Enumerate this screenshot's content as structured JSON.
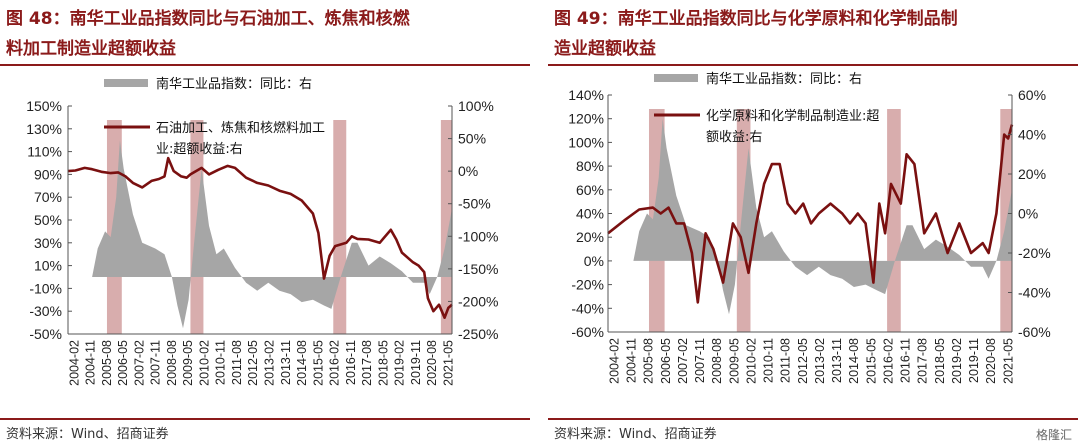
{
  "source_text": "资料来源：Wind、招商证券",
  "watermark_text": "格隆汇",
  "colors": {
    "title": "#8b1a1a",
    "line": "#7a1010",
    "area": "#a6a6a6",
    "band": "#d4a4a4"
  },
  "x_tick_labels": [
    "2004-02",
    "2004-11",
    "2005-08",
    "2006-05",
    "2007-02",
    "2007-11",
    "2008-08",
    "2009-05",
    "2010-02",
    "2010-11",
    "2011-08",
    "2012-05",
    "2013-02",
    "2013-11",
    "2014-08",
    "2015-05",
    "2016-02",
    "2016-11",
    "2017-08",
    "2018-05",
    "2019-02",
    "2019-11",
    "2020-08",
    "2021-05"
  ],
  "chart_data": [
    {
      "type": "area+line",
      "title": "图 48：南华工业品指数同比与石油加工、炼焦和核燃料加工制造业超额收益",
      "title_lines": [
        "图 48：南华工业品指数同比与石油加工、炼焦和核燃",
        "料加工制造业超额收益"
      ],
      "left_axis": {
        "ticks": [
          "150%",
          "130%",
          "110%",
          "90%",
          "70%",
          "50%",
          "30%",
          "10%",
          "-10%",
          "-30%",
          "-50%"
        ],
        "range": [
          -50,
          150
        ]
      },
      "right_axis": {
        "ticks": [
          "100%",
          "50%",
          "0%",
          "-50%",
          "-100%",
          "-150%",
          "-200%",
          "-250%"
        ],
        "range": [
          -250,
          100
        ]
      },
      "x_range": [
        "2004-02",
        "2021-05"
      ],
      "series": [
        {
          "name": "南华工业品指数：同比：右",
          "kind": "area",
          "axis": "left",
          "points": [
            [
              "2004-02",
              0
            ],
            [
              "2005-03",
              0
            ],
            [
              "2005-06",
              25
            ],
            [
              "2005-10",
              40
            ],
            [
              "2006-01",
              35
            ],
            [
              "2006-04",
              70
            ],
            [
              "2006-06",
              120
            ],
            [
              "2006-08",
              95
            ],
            [
              "2007-01",
              55
            ],
            [
              "2007-06",
              30
            ],
            [
              "2008-01",
              25
            ],
            [
              "2008-06",
              20
            ],
            [
              "2008-10",
              0
            ],
            [
              "2009-01",
              -25
            ],
            [
              "2009-04",
              -45
            ],
            [
              "2009-07",
              -20
            ],
            [
              "2009-10",
              30
            ],
            [
              "2010-02",
              95
            ],
            [
              "2010-06",
              45
            ],
            [
              "2010-10",
              20
            ],
            [
              "2011-02",
              25
            ],
            [
              "2011-08",
              8
            ],
            [
              "2012-02",
              -5
            ],
            [
              "2012-08",
              -12
            ],
            [
              "2013-02",
              -5
            ],
            [
              "2013-08",
              -12
            ],
            [
              "2014-02",
              -15
            ],
            [
              "2014-08",
              -22
            ],
            [
              "2015-02",
              -20
            ],
            [
              "2015-08",
              -25
            ],
            [
              "2015-12",
              -28
            ],
            [
              "2016-05",
              0
            ],
            [
              "2016-11",
              30
            ],
            [
              "2017-02",
              30
            ],
            [
              "2017-08",
              10
            ],
            [
              "2018-02",
              18
            ],
            [
              "2018-08",
              12
            ],
            [
              "2019-02",
              5
            ],
            [
              "2019-08",
              -5
            ],
            [
              "2020-02",
              -5
            ],
            [
              "2020-05",
              -15
            ],
            [
              "2020-09",
              0
            ],
            [
              "2021-01",
              25
            ],
            [
              "2021-05",
              60
            ]
          ]
        },
        {
          "name": "石油加工、炼焦和核燃料加工业:超额收益:右",
          "kind": "line",
          "axis": "right",
          "points": [
            [
              "2004-02",
              0
            ],
            [
              "2004-06",
              1
            ],
            [
              "2004-11",
              5
            ],
            [
              "2005-03",
              3
            ],
            [
              "2005-08",
              -1
            ],
            [
              "2006-01",
              -3
            ],
            [
              "2006-05",
              -2
            ],
            [
              "2006-09",
              -8
            ],
            [
              "2007-01",
              -18
            ],
            [
              "2007-06",
              -25
            ],
            [
              "2007-11",
              -15
            ],
            [
              "2008-03",
              -12
            ],
            [
              "2008-06",
              -8
            ],
            [
              "2008-08",
              20
            ],
            [
              "2008-11",
              0
            ],
            [
              "2009-03",
              -8
            ],
            [
              "2009-06",
              -10
            ],
            [
              "2009-08",
              -5
            ],
            [
              "2009-11",
              0
            ],
            [
              "2010-02",
              5
            ],
            [
              "2010-06",
              -5
            ],
            [
              "2010-11",
              2
            ],
            [
              "2011-04",
              8
            ],
            [
              "2011-08",
              5
            ],
            [
              "2012-02",
              -10
            ],
            [
              "2012-08",
              -18
            ],
            [
              "2013-02",
              -22
            ],
            [
              "2013-08",
              -30
            ],
            [
              "2014-02",
              -35
            ],
            [
              "2014-08",
              -45
            ],
            [
              "2015-02",
              -65
            ],
            [
              "2015-05",
              -95
            ],
            [
              "2015-08",
              -165
            ],
            [
              "2015-11",
              -130
            ],
            [
              "2016-02",
              -115
            ],
            [
              "2016-08",
              -110
            ],
            [
              "2016-11",
              -100
            ],
            [
              "2017-02",
              -104
            ],
            [
              "2017-08",
              -105
            ],
            [
              "2018-02",
              -110
            ],
            [
              "2018-08",
              -90
            ],
            [
              "2018-11",
              -105
            ],
            [
              "2019-02",
              -125
            ],
            [
              "2019-08",
              -140
            ],
            [
              "2019-11",
              -145
            ],
            [
              "2020-02",
              -155
            ],
            [
              "2020-04",
              -195
            ],
            [
              "2020-07",
              -215
            ],
            [
              "2020-10",
              -205
            ],
            [
              "2021-01",
              -225
            ],
            [
              "2021-03",
              -210
            ],
            [
              "2021-05",
              -205
            ]
          ]
        }
      ],
      "bands": [
        [
          "2005-11",
          "2006-07"
        ],
        [
          "2009-08",
          "2010-03"
        ],
        [
          "2016-01",
          "2016-08"
        ],
        [
          "2020-11",
          "2021-05"
        ]
      ]
    },
    {
      "type": "area+line",
      "title": "图 49：南华工业品指数同比与化学原料和化学制品制造业超额收益",
      "title_lines": [
        "图 49：南华工业品指数同比与化学原料和化学制品制",
        "造业超额收益"
      ],
      "left_axis": {
        "ticks": [
          "140%",
          "120%",
          "100%",
          "80%",
          "60%",
          "40%",
          "20%",
          "0%",
          "-20%",
          "-40%",
          "-60%"
        ],
        "range": [
          -60,
          140
        ]
      },
      "right_axis": {
        "ticks": [
          "60%",
          "40%",
          "20%",
          "0%",
          "-20%",
          "-40%",
          "-60%"
        ],
        "range": [
          -60,
          60
        ]
      },
      "x_range": [
        "2004-02",
        "2021-05"
      ],
      "series": [
        {
          "name": "南华工业品指数：同比：右",
          "kind": "area",
          "axis": "left",
          "points": [
            [
              "2004-02",
              0
            ],
            [
              "2005-03",
              0
            ],
            [
              "2005-06",
              25
            ],
            [
              "2005-10",
              40
            ],
            [
              "2006-01",
              35
            ],
            [
              "2006-04",
              70
            ],
            [
              "2006-06",
              120
            ],
            [
              "2006-08",
              95
            ],
            [
              "2007-01",
              55
            ],
            [
              "2007-06",
              30
            ],
            [
              "2008-01",
              25
            ],
            [
              "2008-06",
              20
            ],
            [
              "2008-10",
              0
            ],
            [
              "2009-01",
              -25
            ],
            [
              "2009-04",
              -45
            ],
            [
              "2009-07",
              -20
            ],
            [
              "2009-10",
              30
            ],
            [
              "2010-02",
              95
            ],
            [
              "2010-06",
              45
            ],
            [
              "2010-10",
              20
            ],
            [
              "2011-02",
              25
            ],
            [
              "2011-08",
              8
            ],
            [
              "2012-02",
              -5
            ],
            [
              "2012-08",
              -12
            ],
            [
              "2013-02",
              -5
            ],
            [
              "2013-08",
              -12
            ],
            [
              "2014-02",
              -15
            ],
            [
              "2014-08",
              -22
            ],
            [
              "2015-02",
              -20
            ],
            [
              "2015-08",
              -25
            ],
            [
              "2015-12",
              -28
            ],
            [
              "2016-05",
              0
            ],
            [
              "2016-11",
              30
            ],
            [
              "2017-02",
              30
            ],
            [
              "2017-08",
              10
            ],
            [
              "2018-02",
              18
            ],
            [
              "2018-08",
              12
            ],
            [
              "2019-02",
              5
            ],
            [
              "2019-08",
              -5
            ],
            [
              "2020-02",
              -5
            ],
            [
              "2020-05",
              -15
            ],
            [
              "2020-09",
              0
            ],
            [
              "2021-01",
              25
            ],
            [
              "2021-05",
              60
            ]
          ]
        },
        {
          "name": "化学原料和化学制品制造业:超额收益:右",
          "kind": "line",
          "axis": "right",
          "points": [
            [
              "2004-02",
              -10
            ],
            [
              "2004-11",
              -3
            ],
            [
              "2005-06",
              2
            ],
            [
              "2006-01",
              3
            ],
            [
              "2006-05",
              0
            ],
            [
              "2006-09",
              3
            ],
            [
              "2007-01",
              -5
            ],
            [
              "2007-05",
              -5
            ],
            [
              "2007-09",
              -20
            ],
            [
              "2007-12",
              -45
            ],
            [
              "2008-04",
              -10
            ],
            [
              "2008-08",
              -18
            ],
            [
              "2009-01",
              -35
            ],
            [
              "2009-06",
              -5
            ],
            [
              "2009-10",
              -12
            ],
            [
              "2010-02",
              -30
            ],
            [
              "2010-06",
              -5
            ],
            [
              "2010-10",
              15
            ],
            [
              "2011-02",
              25
            ],
            [
              "2011-06",
              25
            ],
            [
              "2011-10",
              5
            ],
            [
              "2012-02",
              0
            ],
            [
              "2012-06",
              5
            ],
            [
              "2012-10",
              -5
            ],
            [
              "2013-02",
              0
            ],
            [
              "2013-08",
              5
            ],
            [
              "2014-02",
              0
            ],
            [
              "2014-06",
              -5
            ],
            [
              "2014-10",
              0
            ],
            [
              "2015-02",
              -5
            ],
            [
              "2015-06",
              -35
            ],
            [
              "2015-09",
              5
            ],
            [
              "2015-12",
              -10
            ],
            [
              "2016-03",
              15
            ],
            [
              "2016-08",
              5
            ],
            [
              "2016-11",
              30
            ],
            [
              "2017-03",
              25
            ],
            [
              "2017-08",
              -10
            ],
            [
              "2018-02",
              0
            ],
            [
              "2018-08",
              -20
            ],
            [
              "2019-02",
              -5
            ],
            [
              "2019-08",
              -20
            ],
            [
              "2020-02",
              -15
            ],
            [
              "2020-05",
              -20
            ],
            [
              "2020-09",
              0
            ],
            [
              "2021-01",
              40
            ],
            [
              "2021-03",
              38
            ],
            [
              "2021-05",
              45
            ]
          ]
        }
      ],
      "bands": [
        [
          "2005-11",
          "2006-07"
        ],
        [
          "2009-08",
          "2010-03"
        ],
        [
          "2016-01",
          "2016-08"
        ],
        [
          "2020-11",
          "2021-05"
        ]
      ]
    }
  ]
}
